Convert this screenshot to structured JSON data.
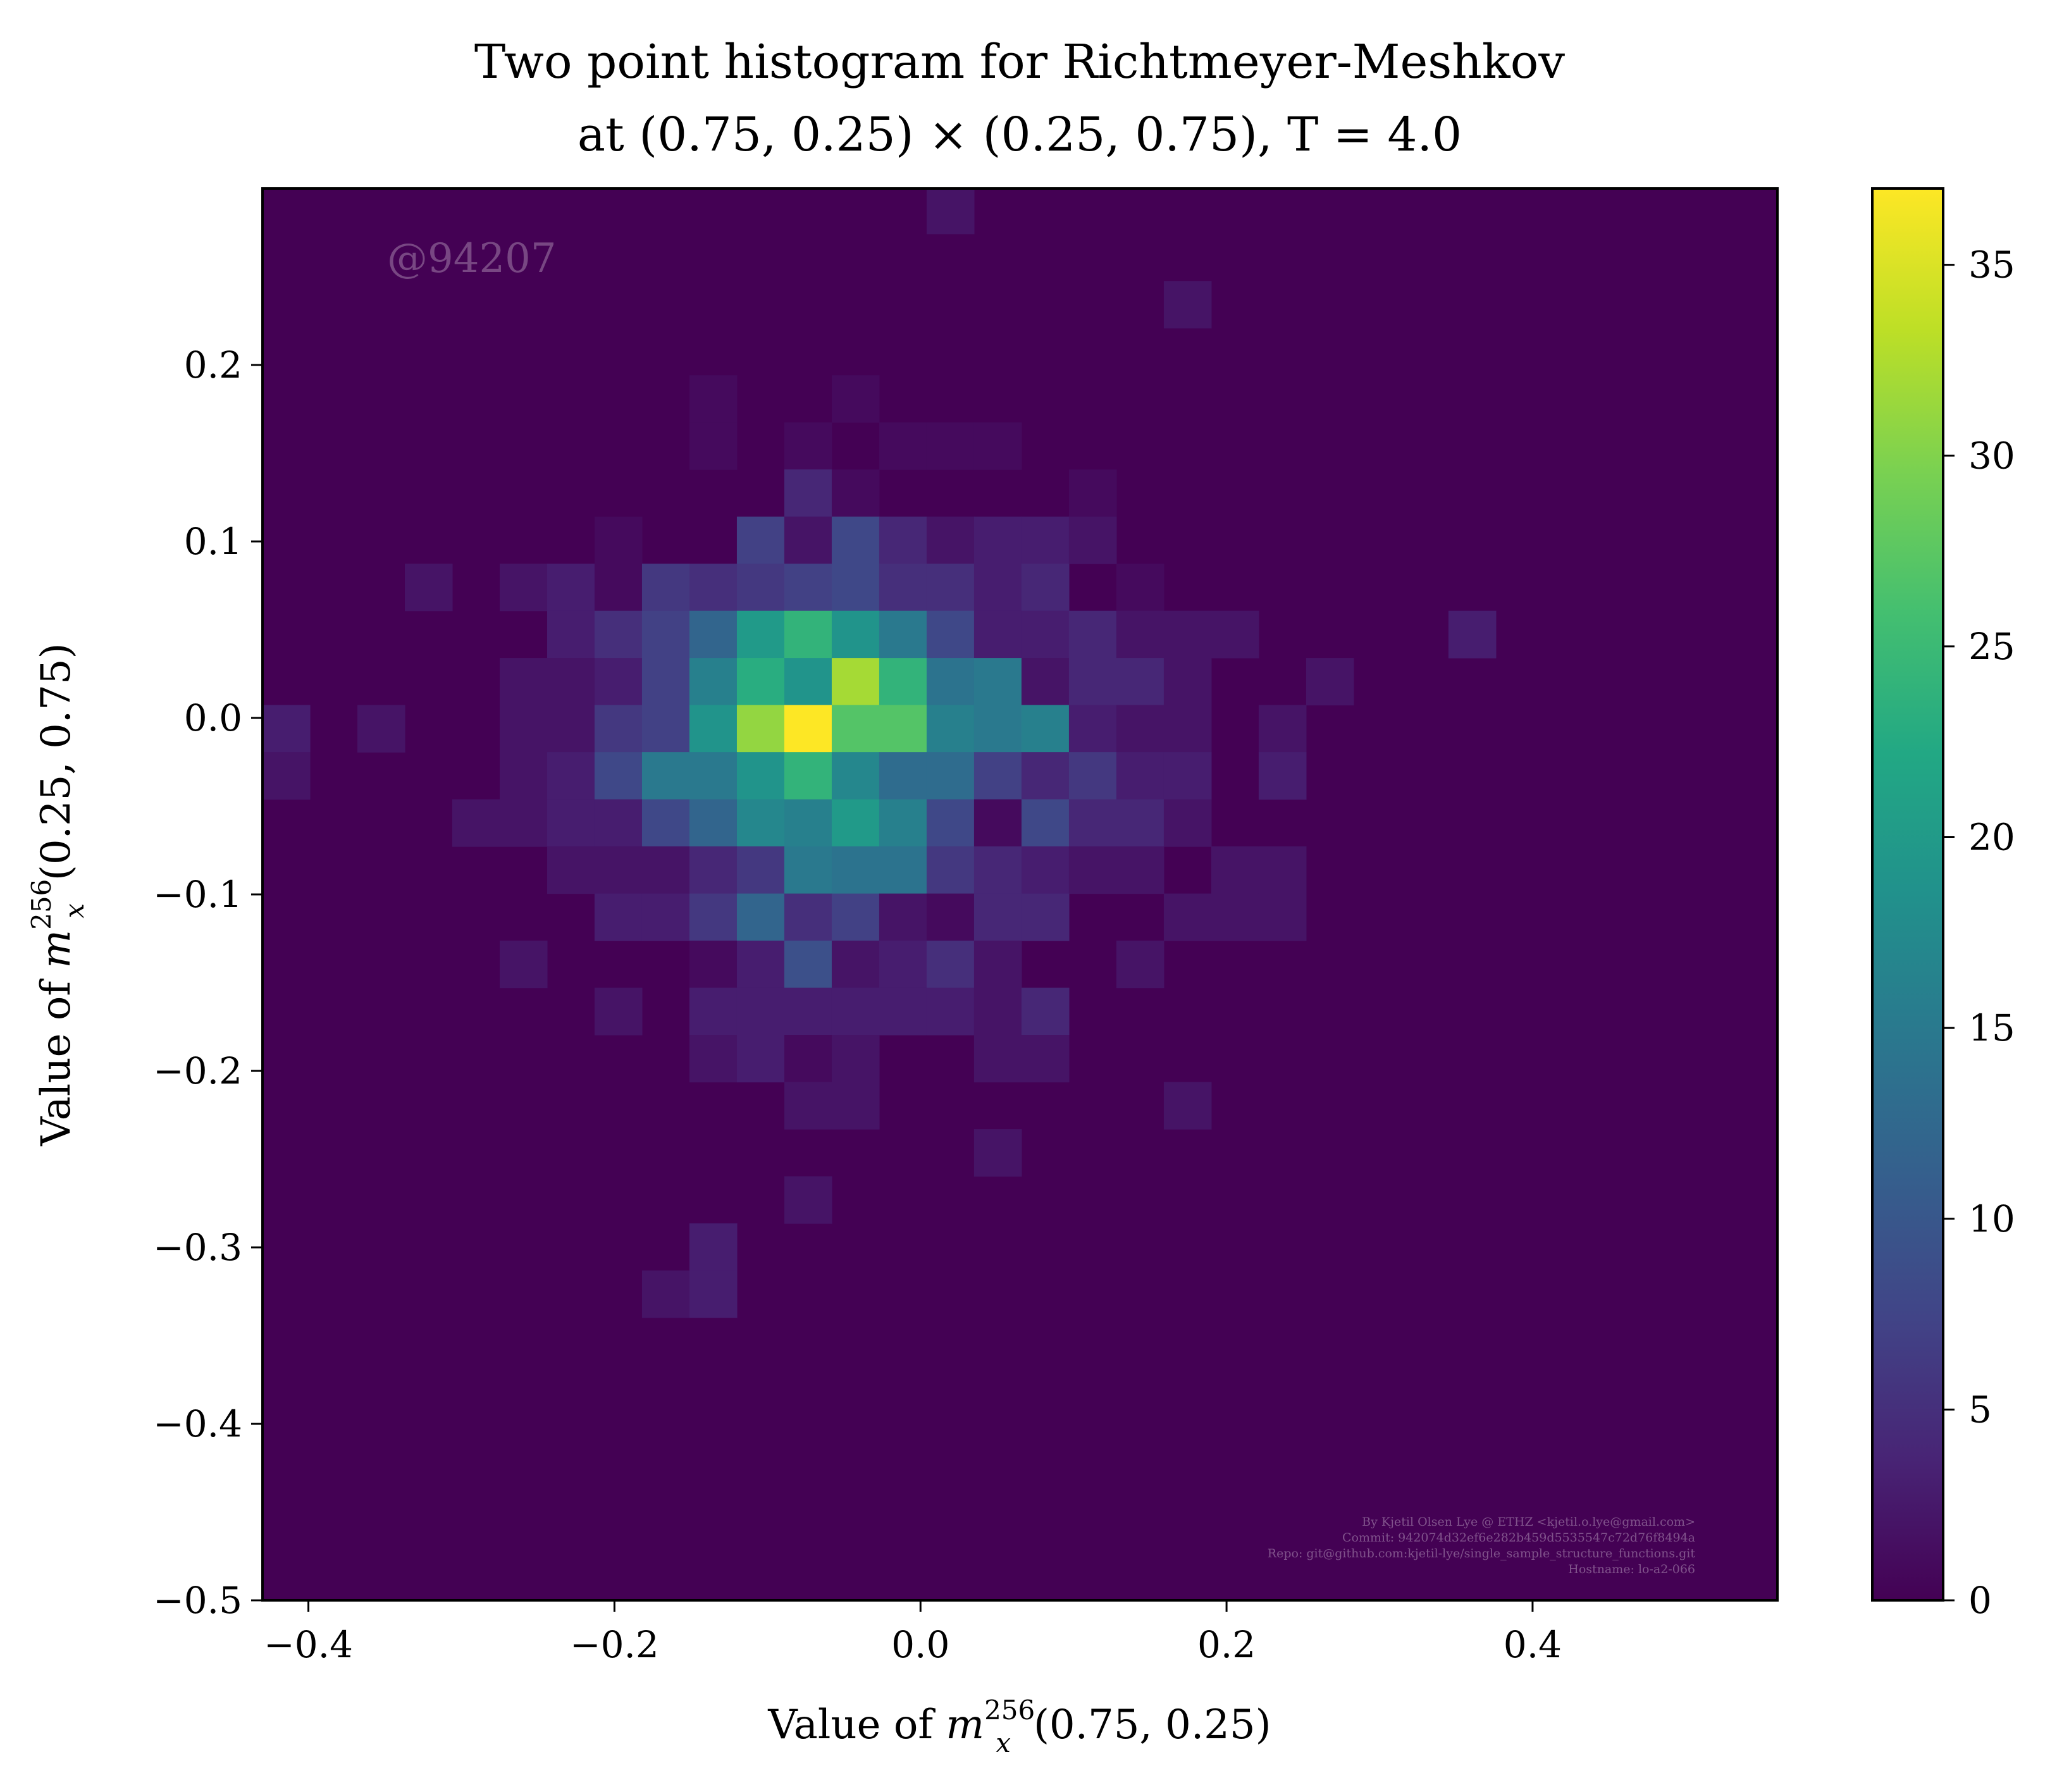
{
  "chart_data": {
    "type": "heatmap",
    "title_line1": "Two point histogram for Richtmeyer-Meshkov",
    "title_line2": "at (0.75, 0.25) × (0.25, 0.75), T = 4.0",
    "xlabel": {
      "prefix": "Value of ",
      "var": "m",
      "sub": "x",
      "sup": "256",
      "suffix": "(0.75, 0.25)"
    },
    "ylabel": {
      "prefix": "Value of ",
      "var": "m",
      "sub": "x",
      "sup": "256",
      "suffix": "(0.25, 0.75)"
    },
    "xlim": [
      -0.43,
      0.56
    ],
    "ylim": [
      -0.5,
      0.3
    ],
    "xticks": [
      {
        "value": -0.4,
        "label": "−0.4"
      },
      {
        "value": -0.2,
        "label": "−0.2"
      },
      {
        "value": 0.0,
        "label": "0.0"
      },
      {
        "value": 0.2,
        "label": "0.2"
      },
      {
        "value": 0.4,
        "label": "0.4"
      }
    ],
    "yticks": [
      {
        "value": 0.2,
        "label": "0.2"
      },
      {
        "value": 0.1,
        "label": "0.1"
      },
      {
        "value": 0.0,
        "label": "0.0"
      },
      {
        "value": -0.1,
        "label": "−0.1"
      },
      {
        "value": -0.2,
        "label": "−0.2"
      },
      {
        "value": -0.3,
        "label": "−0.3"
      },
      {
        "value": -0.4,
        "label": "−0.4"
      },
      {
        "value": -0.5,
        "label": "−0.5"
      }
    ],
    "colorbar": {
      "min": 0,
      "max": 37,
      "colormap": "viridis",
      "ticks": [
        {
          "value": 0,
          "label": "0"
        },
        {
          "value": 5,
          "label": "5"
        },
        {
          "value": 10,
          "label": "10"
        },
        {
          "value": 15,
          "label": "15"
        },
        {
          "value": 20,
          "label": "20"
        },
        {
          "value": 25,
          "label": "25"
        },
        {
          "value": 30,
          "label": "30"
        },
        {
          "value": 35,
          "label": "35"
        }
      ]
    },
    "bins": {
      "x0": -0.43,
      "dx": 0.031,
      "y0": -0.5,
      "dy": 0.0267
    },
    "cells": [
      {
        "i": 14,
        "j": 29,
        "c": 2
      },
      {
        "i": 19,
        "j": 27,
        "c": 2
      },
      {
        "i": 9,
        "j": 25,
        "c": 1
      },
      {
        "i": 12,
        "j": 25,
        "c": 1
      },
      {
        "i": 9,
        "j": 24,
        "c": 1
      },
      {
        "i": 11,
        "j": 24,
        "c": 1
      },
      {
        "i": 13,
        "j": 24,
        "c": 1
      },
      {
        "i": 14,
        "j": 24,
        "c": 1
      },
      {
        "i": 15,
        "j": 24,
        "c": 1
      },
      {
        "i": 11,
        "j": 23,
        "c": 4
      },
      {
        "i": 12,
        "j": 23,
        "c": 1
      },
      {
        "i": 17,
        "j": 23,
        "c": 1
      },
      {
        "i": 7,
        "j": 22,
        "c": 1
      },
      {
        "i": 10,
        "j": 22,
        "c": 7
      },
      {
        "i": 11,
        "j": 22,
        "c": 2
      },
      {
        "i": 12,
        "j": 22,
        "c": 8
      },
      {
        "i": 13,
        "j": 22,
        "c": 4
      },
      {
        "i": 14,
        "j": 22,
        "c": 2
      },
      {
        "i": 15,
        "j": 22,
        "c": 3
      },
      {
        "i": 16,
        "j": 22,
        "c": 3
      },
      {
        "i": 17,
        "j": 22,
        "c": 2
      },
      {
        "i": 3,
        "j": 21,
        "c": 2
      },
      {
        "i": 5,
        "j": 21,
        "c": 2
      },
      {
        "i": 6,
        "j": 21,
        "c": 3
      },
      {
        "i": 7,
        "j": 21,
        "c": 1
      },
      {
        "i": 8,
        "j": 21,
        "c": 6
      },
      {
        "i": 9,
        "j": 21,
        "c": 5
      },
      {
        "i": 10,
        "j": 21,
        "c": 6
      },
      {
        "i": 11,
        "j": 21,
        "c": 7
      },
      {
        "i": 12,
        "j": 21,
        "c": 8
      },
      {
        "i": 13,
        "j": 21,
        "c": 5
      },
      {
        "i": 14,
        "j": 21,
        "c": 5
      },
      {
        "i": 15,
        "j": 21,
        "c": 3
      },
      {
        "i": 16,
        "j": 21,
        "c": 4
      },
      {
        "i": 18,
        "j": 21,
        "c": 1
      },
      {
        "i": 6,
        "j": 20,
        "c": 3
      },
      {
        "i": 7,
        "j": 20,
        "c": 5
      },
      {
        "i": 8,
        "j": 20,
        "c": 7
      },
      {
        "i": 9,
        "j": 20,
        "c": 12
      },
      {
        "i": 10,
        "j": 20,
        "c": 20
      },
      {
        "i": 11,
        "j": 20,
        "c": 24
      },
      {
        "i": 12,
        "j": 20,
        "c": 19
      },
      {
        "i": 13,
        "j": 20,
        "c": 15
      },
      {
        "i": 14,
        "j": 20,
        "c": 8
      },
      {
        "i": 15,
        "j": 20,
        "c": 3
      },
      {
        "i": 16,
        "j": 20,
        "c": 3
      },
      {
        "i": 17,
        "j": 20,
        "c": 4
      },
      {
        "i": 18,
        "j": 20,
        "c": 2
      },
      {
        "i": 19,
        "j": 20,
        "c": 2
      },
      {
        "i": 20,
        "j": 20,
        "c": 2
      },
      {
        "i": 25,
        "j": 20,
        "c": 3
      },
      {
        "i": 5,
        "j": 19,
        "c": 2
      },
      {
        "i": 6,
        "j": 19,
        "c": 2
      },
      {
        "i": 7,
        "j": 19,
        "c": 3
      },
      {
        "i": 8,
        "j": 19,
        "c": 7
      },
      {
        "i": 9,
        "j": 19,
        "c": 16
      },
      {
        "i": 10,
        "j": 19,
        "c": 23
      },
      {
        "i": 11,
        "j": 19,
        "c": 19
      },
      {
        "i": 12,
        "j": 19,
        "c": 32
      },
      {
        "i": 13,
        "j": 19,
        "c": 24
      },
      {
        "i": 14,
        "j": 19,
        "c": 14
      },
      {
        "i": 15,
        "j": 19,
        "c": 15
      },
      {
        "i": 16,
        "j": 19,
        "c": 2
      },
      {
        "i": 17,
        "j": 19,
        "c": 4
      },
      {
        "i": 18,
        "j": 19,
        "c": 4
      },
      {
        "i": 19,
        "j": 19,
        "c": 2
      },
      {
        "i": 22,
        "j": 19,
        "c": 2
      },
      {
        "i": 0,
        "j": 18,
        "c": 3
      },
      {
        "i": 2,
        "j": 18,
        "c": 2
      },
      {
        "i": 5,
        "j": 18,
        "c": 2
      },
      {
        "i": 6,
        "j": 18,
        "c": 2
      },
      {
        "i": 7,
        "j": 18,
        "c": 6
      },
      {
        "i": 8,
        "j": 18,
        "c": 7
      },
      {
        "i": 9,
        "j": 18,
        "c": 19
      },
      {
        "i": 10,
        "j": 18,
        "c": 31
      },
      {
        "i": 11,
        "j": 18,
        "c": 37
      },
      {
        "i": 12,
        "j": 18,
        "c": 27
      },
      {
        "i": 13,
        "j": 18,
        "c": 27
      },
      {
        "i": 14,
        "j": 18,
        "c": 16
      },
      {
        "i": 15,
        "j": 18,
        "c": 15
      },
      {
        "i": 16,
        "j": 18,
        "c": 16
      },
      {
        "i": 17,
        "j": 18,
        "c": 3
      },
      {
        "i": 18,
        "j": 18,
        "c": 2
      },
      {
        "i": 19,
        "j": 18,
        "c": 2
      },
      {
        "i": 21,
        "j": 18,
        "c": 2
      },
      {
        "i": 0,
        "j": 17,
        "c": 2
      },
      {
        "i": 5,
        "j": 17,
        "c": 2
      },
      {
        "i": 6,
        "j": 17,
        "c": 3
      },
      {
        "i": 7,
        "j": 17,
        "c": 8
      },
      {
        "i": 8,
        "j": 17,
        "c": 15
      },
      {
        "i": 9,
        "j": 17,
        "c": 15
      },
      {
        "i": 10,
        "j": 17,
        "c": 19
      },
      {
        "i": 11,
        "j": 17,
        "c": 24
      },
      {
        "i": 12,
        "j": 17,
        "c": 17
      },
      {
        "i": 13,
        "j": 17,
        "c": 13
      },
      {
        "i": 14,
        "j": 17,
        "c": 13
      },
      {
        "i": 15,
        "j": 17,
        "c": 7
      },
      {
        "i": 16,
        "j": 17,
        "c": 4
      },
      {
        "i": 17,
        "j": 17,
        "c": 6
      },
      {
        "i": 18,
        "j": 17,
        "c": 3
      },
      {
        "i": 19,
        "j": 17,
        "c": 3
      },
      {
        "i": 21,
        "j": 17,
        "c": 3
      },
      {
        "i": 4,
        "j": 16,
        "c": 2
      },
      {
        "i": 5,
        "j": 16,
        "c": 2
      },
      {
        "i": 6,
        "j": 16,
        "c": 3
      },
      {
        "i": 7,
        "j": 16,
        "c": 3
      },
      {
        "i": 8,
        "j": 16,
        "c": 8
      },
      {
        "i": 9,
        "j": 16,
        "c": 12
      },
      {
        "i": 10,
        "j": 16,
        "c": 17
      },
      {
        "i": 11,
        "j": 16,
        "c": 16
      },
      {
        "i": 12,
        "j": 16,
        "c": 20
      },
      {
        "i": 13,
        "j": 16,
        "c": 16
      },
      {
        "i": 14,
        "j": 16,
        "c": 8
      },
      {
        "i": 15,
        "j": 16,
        "c": 1
      },
      {
        "i": 16,
        "j": 16,
        "c": 8
      },
      {
        "i": 17,
        "j": 16,
        "c": 4
      },
      {
        "i": 18,
        "j": 16,
        "c": 4
      },
      {
        "i": 19,
        "j": 16,
        "c": 2
      },
      {
        "i": 6,
        "j": 15,
        "c": 2
      },
      {
        "i": 7,
        "j": 15,
        "c": 2
      },
      {
        "i": 8,
        "j": 15,
        "c": 2
      },
      {
        "i": 9,
        "j": 15,
        "c": 4
      },
      {
        "i": 10,
        "j": 15,
        "c": 6
      },
      {
        "i": 11,
        "j": 15,
        "c": 15
      },
      {
        "i": 12,
        "j": 15,
        "c": 14
      },
      {
        "i": 13,
        "j": 15,
        "c": 14
      },
      {
        "i": 14,
        "j": 15,
        "c": 6
      },
      {
        "i": 15,
        "j": 15,
        "c": 4
      },
      {
        "i": 16,
        "j": 15,
        "c": 3
      },
      {
        "i": 17,
        "j": 15,
        "c": 2
      },
      {
        "i": 18,
        "j": 15,
        "c": 2
      },
      {
        "i": 20,
        "j": 15,
        "c": 2
      },
      {
        "i": 21,
        "j": 15,
        "c": 2
      },
      {
        "i": 7,
        "j": 14,
        "c": 3
      },
      {
        "i": 8,
        "j": 14,
        "c": 3
      },
      {
        "i": 9,
        "j": 14,
        "c": 6
      },
      {
        "i": 10,
        "j": 14,
        "c": 12
      },
      {
        "i": 11,
        "j": 14,
        "c": 5
      },
      {
        "i": 12,
        "j": 14,
        "c": 7
      },
      {
        "i": 13,
        "j": 14,
        "c": 2
      },
      {
        "i": 14,
        "j": 14,
        "c": 1
      },
      {
        "i": 15,
        "j": 14,
        "c": 4
      },
      {
        "i": 16,
        "j": 14,
        "c": 4
      },
      {
        "i": 19,
        "j": 14,
        "c": 2
      },
      {
        "i": 20,
        "j": 14,
        "c": 2
      },
      {
        "i": 21,
        "j": 14,
        "c": 2
      },
      {
        "i": 5,
        "j": 13,
        "c": 2
      },
      {
        "i": 9,
        "j": 13,
        "c": 1
      },
      {
        "i": 10,
        "j": 13,
        "c": 3
      },
      {
        "i": 11,
        "j": 13,
        "c": 9
      },
      {
        "i": 12,
        "j": 13,
        "c": 2
      },
      {
        "i": 13,
        "j": 13,
        "c": 3
      },
      {
        "i": 14,
        "j": 13,
        "c": 5
      },
      {
        "i": 15,
        "j": 13,
        "c": 2
      },
      {
        "i": 18,
        "j": 13,
        "c": 2
      },
      {
        "i": 7,
        "j": 12,
        "c": 2
      },
      {
        "i": 9,
        "j": 12,
        "c": 3
      },
      {
        "i": 10,
        "j": 12,
        "c": 3
      },
      {
        "i": 11,
        "j": 12,
        "c": 3
      },
      {
        "i": 12,
        "j": 12,
        "c": 3
      },
      {
        "i": 13,
        "j": 12,
        "c": 3
      },
      {
        "i": 14,
        "j": 12,
        "c": 3
      },
      {
        "i": 15,
        "j": 12,
        "c": 2
      },
      {
        "i": 16,
        "j": 12,
        "c": 4
      },
      {
        "i": 9,
        "j": 11,
        "c": 2
      },
      {
        "i": 10,
        "j": 11,
        "c": 3
      },
      {
        "i": 11,
        "j": 11,
        "c": 1
      },
      {
        "i": 12,
        "j": 11,
        "c": 2
      },
      {
        "i": 15,
        "j": 11,
        "c": 2
      },
      {
        "i": 16,
        "j": 11,
        "c": 2
      },
      {
        "i": 11,
        "j": 10,
        "c": 2
      },
      {
        "i": 12,
        "j": 10,
        "c": 2
      },
      {
        "i": 19,
        "j": 10,
        "c": 2
      },
      {
        "i": 15,
        "j": 9,
        "c": 2
      },
      {
        "i": 11,
        "j": 8,
        "c": 2
      },
      {
        "i": 9,
        "j": 7,
        "c": 3
      },
      {
        "i": 8,
        "j": 6,
        "c": 2
      },
      {
        "i": 9,
        "j": 6,
        "c": 3
      }
    ],
    "watermark": "@94207",
    "credits": [
      "By Kjetil Olsen Lye @ ETHZ <kjetil.o.lye@gmail.com>",
      "Commit: 942074d32ef6e282b459d5535547c72d76f8494a",
      "Repo: git@github.com:kjetil-lye/single_sample_structure_functions.git",
      "Hostname: lo-a2-066"
    ]
  }
}
